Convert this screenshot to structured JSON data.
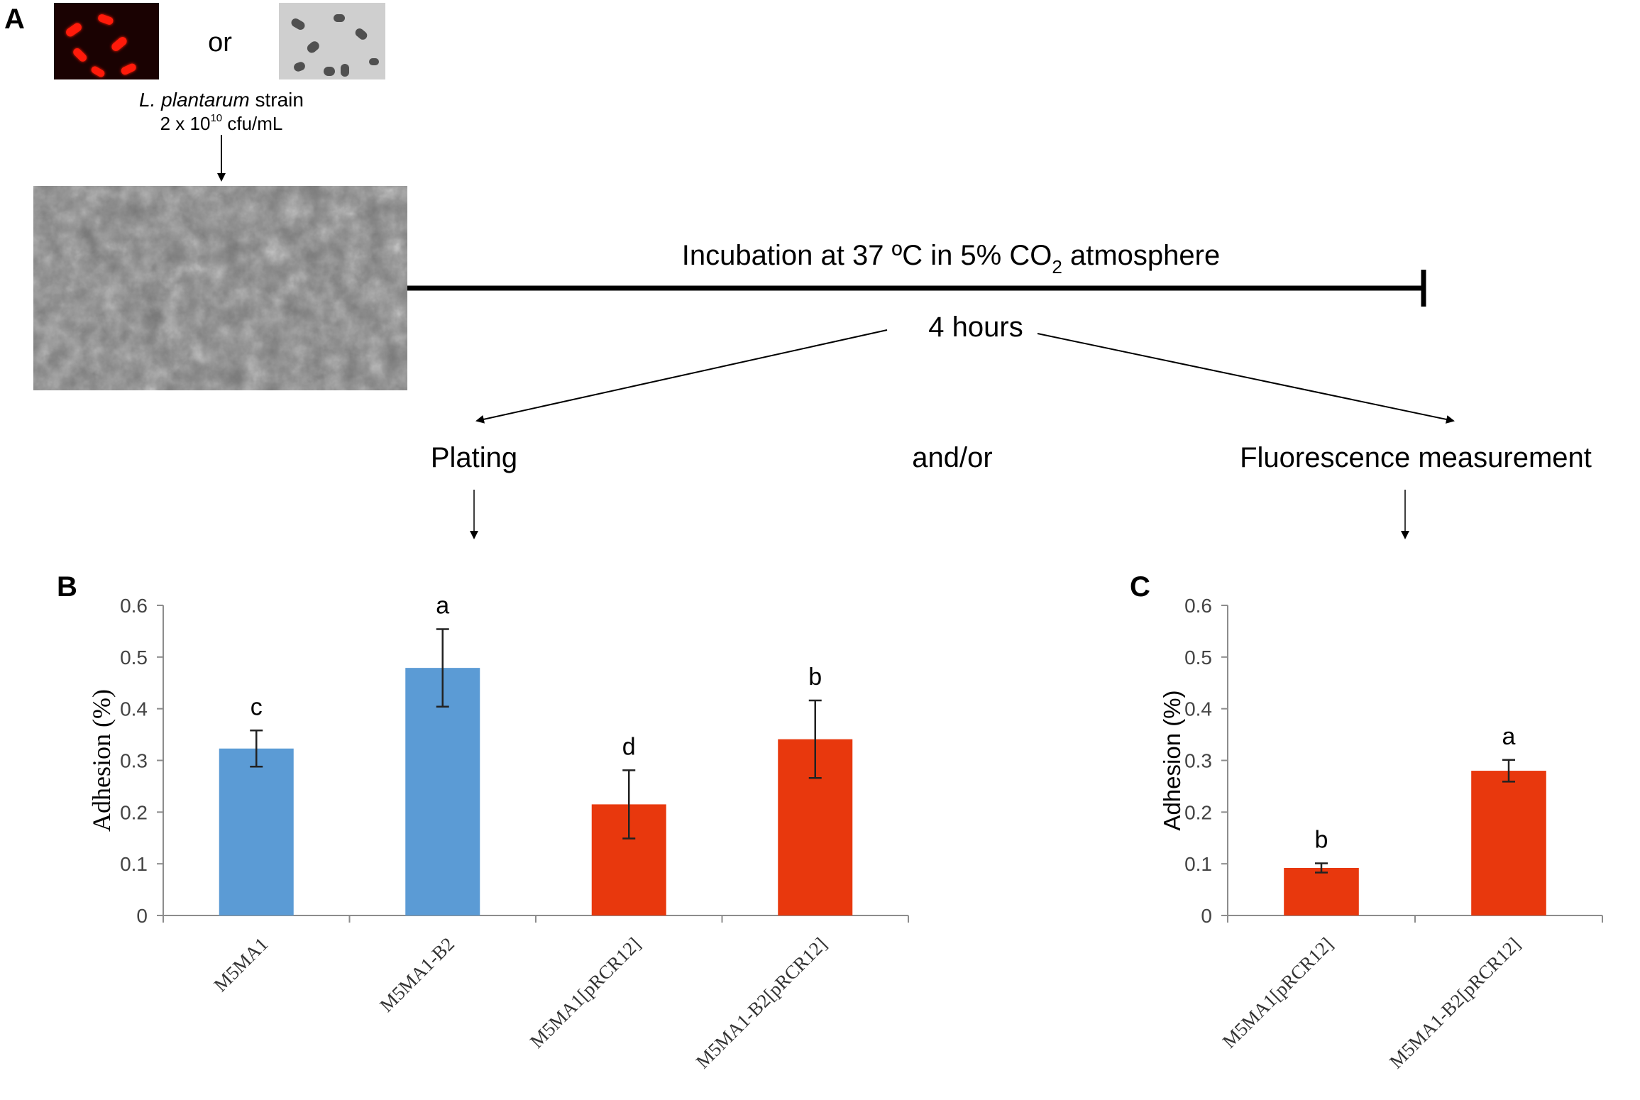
{
  "panel_a": {
    "label": "A",
    "or_text": "or",
    "strain_species": "L. plantarum",
    "strain_word": "strain",
    "concentration_prefix": "2 x 10",
    "concentration_exponent": "10",
    "concentration_unit": "cfu/mL",
    "incubation_part1": "Incubation at 37 ºC in 5% CO",
    "incubation_sub": "2",
    "incubation_part2": "atmosphere",
    "duration": "4 hours",
    "branch_left": "Plating",
    "branch_middle": "and/or",
    "branch_right": "Fluorescence measurement",
    "colors": {
      "fluorescent_background": "#1a0202",
      "fluorescent_cells": "#ff1a0a",
      "brightfield_background": "#cfcfcf",
      "brightfield_cells": "#505050"
    }
  },
  "colors": {
    "blue": "#5b9bd5",
    "red": "#e8380d",
    "axis": "#8c8c8c",
    "error_bar": "#222222"
  },
  "chart_data": [
    {
      "panel": "B",
      "type": "bar",
      "ylabel": "Adhesion (%)",
      "ylim": [
        0,
        0.6
      ],
      "yticks": [
        "0",
        "0.1",
        "0.2",
        "0.3",
        "0.4",
        "0.5",
        "0.6"
      ],
      "categories": [
        "M5MA1",
        "M5MA1-B2",
        "M5MA1[pRCR12]",
        "M5MA1-B2[pRCR12]"
      ],
      "values": [
        0.323,
        0.479,
        0.215,
        0.341
      ],
      "errors": [
        0.035,
        0.075,
        0.066,
        0.075
      ],
      "significance": [
        "c",
        "a",
        "d",
        "b"
      ],
      "bar_colors": [
        "#5b9bd5",
        "#5b9bd5",
        "#e8380d",
        "#e8380d"
      ],
      "grid": false
    },
    {
      "panel": "C",
      "type": "bar",
      "ylabel": "Adhesion (%)",
      "ylim": [
        0,
        0.6
      ],
      "yticks": [
        "0",
        "0.1",
        "0.2",
        "0.3",
        "0.4",
        "0.5",
        "0.6"
      ],
      "categories": [
        "M5MA1[pRCR12]",
        "M5MA1-B2[pRCR12]"
      ],
      "values": [
        0.092,
        0.28
      ],
      "errors": [
        0.009,
        0.021
      ],
      "significance": [
        "b",
        "a"
      ],
      "bar_colors": [
        "#e8380d",
        "#e8380d"
      ],
      "grid": false
    }
  ]
}
